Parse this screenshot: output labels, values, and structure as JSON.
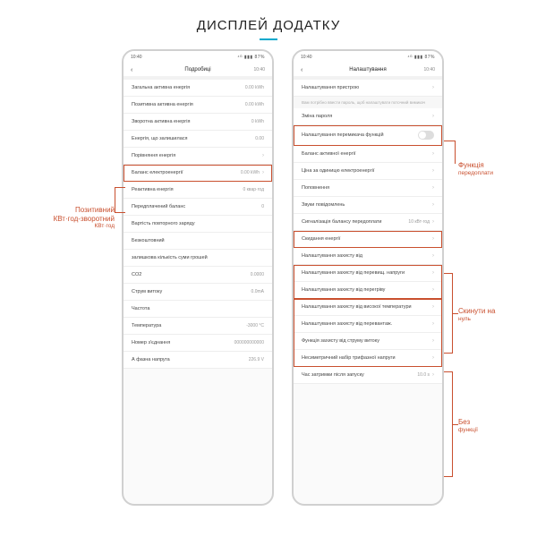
{
  "page": {
    "title": "ДИСПЛЕЙ ДОДАТКУ"
  },
  "colors": {
    "accent": "#00a8cc",
    "callout": "#c94f2e",
    "border": "#d0d0d0",
    "row_border": "#eeeeee",
    "bg": "#ffffff"
  },
  "status": {
    "left": "10:40",
    "signal": "⁴ᴳ ▮▮▮ 87%",
    "right_time": "10:40"
  },
  "left_phone": {
    "header": "Подробиці",
    "rows": [
      {
        "label": "Загальна активна енергія",
        "value": "0.00 kWh"
      },
      {
        "label": "Позитивна активна енергія",
        "value": "0.00 kWh"
      },
      {
        "label": "Зворотна активна енергія",
        "value": "0 kWh"
      },
      {
        "label": "Енергія, що залишилася",
        "value": "0.00"
      },
      {
        "label": "Порівняння енергія",
        "value": "",
        "chev": true
      },
      {
        "label": "Баланс електроенергії",
        "value": "0.00 kWh",
        "chev": true,
        "hl": true
      },
      {
        "label": "Реактивна енергія",
        "value": "0 квар·год"
      },
      {
        "label": "Передплачений баланс",
        "value": "0"
      },
      {
        "label": "Вартість повторного заряду",
        "value": ""
      },
      {
        "label": "Безкоштовний",
        "value": ""
      },
      {
        "label": "залишкова кількість суми грошей",
        "value": ""
      },
      {
        "label": "CO2",
        "value": "0.0000"
      },
      {
        "label": "Струм витоку",
        "value": "0.0mA"
      },
      {
        "label": "Частота",
        "value": ""
      },
      {
        "label": "Температура",
        "value": "-3000 °C"
      },
      {
        "label": "Номер з'єднання",
        "value": "000000000000"
      },
      {
        "label": "А фазна напруга",
        "value": "226.9 V"
      }
    ]
  },
  "right_phone": {
    "header": "Налаштування",
    "top_row": "Налаштування пристрою",
    "note": "Вам потрібно ввести пароль, щоб налаштувати поточний вимикач",
    "rows": [
      {
        "label": "Зміна пароля",
        "chev": true
      },
      {
        "label": "Налаштування перемикача функцій",
        "toggle": true,
        "hl": true
      },
      {
        "label": "Баланс активної енергії",
        "chev": true
      },
      {
        "label": "Ціна за одиницю електроенергії",
        "value": "",
        "chev": true
      },
      {
        "label": "Поповнення",
        "chev": true
      },
      {
        "label": "Звуки повідомлень",
        "chev": true
      },
      {
        "label": "Сигналізація балансу передоплати",
        "value": "10 кВт·год",
        "chev": true
      },
      {
        "label": "Скидання енергії",
        "chev": true,
        "hl": true
      },
      {
        "label": "Налаштування захисту від",
        "chev": true
      },
      {
        "label": "Налаштування захисту від перевищ. напруги",
        "chev": true,
        "hl_group": 1
      },
      {
        "label": "Налаштування захисту від перегріву",
        "chev": true,
        "hl_group": 1
      },
      {
        "label": "Налаштування захисту від високої температури",
        "chev": true,
        "hl_group": 2
      },
      {
        "label": "Налаштування захисту від перевантаж.",
        "chev": true,
        "hl_group": 2
      },
      {
        "label": "Функція захисту від струму витоку",
        "chev": true,
        "hl_group": 2
      },
      {
        "label": "Несиметричний набір трифазної напруги",
        "chev": true,
        "hl_group": 2
      },
      {
        "label": "Час затримки після запуску",
        "value": "10.0 s",
        "chev": true
      }
    ]
  },
  "callouts": {
    "c1": {
      "line1": "Позитивний",
      "line2": "КВт·год-зворотний",
      "line3": "КВт·год"
    },
    "c2": {
      "line1": "Функція",
      "line2": "передоплати"
    },
    "c3": {
      "line1": "Скинути на",
      "line2": "нуль"
    },
    "c4": {
      "line1": "Без",
      "line2": "функції"
    }
  }
}
